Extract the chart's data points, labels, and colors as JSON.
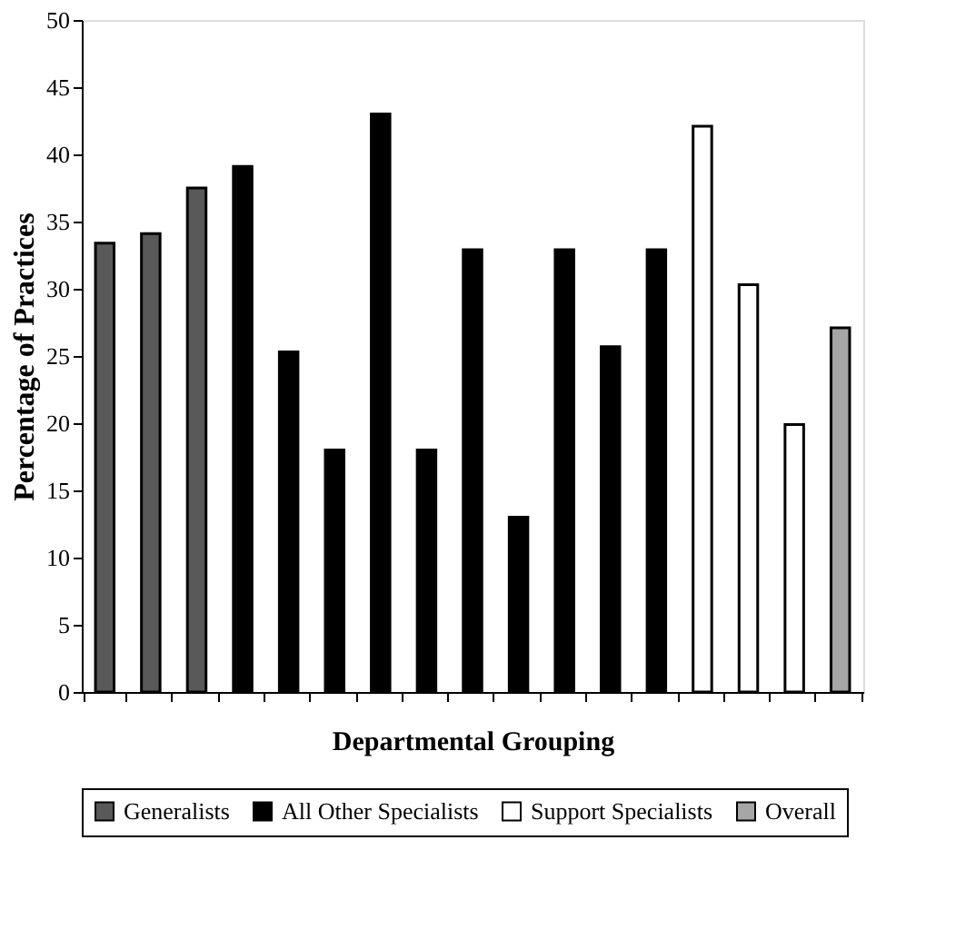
{
  "chart_data": {
    "type": "bar",
    "xlabel": "Departmental Grouping",
    "ylabel": "Percentage of Practices",
    "categories": [
      null,
      null,
      null,
      null,
      null,
      null,
      null,
      null,
      null,
      null,
      null,
      null,
      null,
      null,
      null,
      null,
      null
    ],
    "series": [
      {
        "name": "Generalists",
        "color": "#595959",
        "values": [
          33.4,
          34.1,
          37.5,
          null,
          null,
          null,
          null,
          null,
          null,
          null,
          null,
          null,
          null,
          null,
          null,
          null,
          null
        ]
      },
      {
        "name": "All Other Specialists",
        "color": "#000000",
        "values": [
          null,
          null,
          null,
          39.1,
          25.3,
          18.0,
          43.0,
          18.0,
          32.9,
          13.0,
          32.9,
          25.7,
          32.9,
          null,
          null,
          null,
          null
        ]
      },
      {
        "name": "Support Specialists",
        "color": "#ffffff",
        "values": [
          null,
          null,
          null,
          null,
          null,
          null,
          null,
          null,
          null,
          null,
          null,
          null,
          null,
          42.1,
          30.3,
          19.9,
          null
        ]
      },
      {
        "name": "Overall",
        "color": "#a6a6a6",
        "values": [
          null,
          null,
          null,
          null,
          null,
          null,
          null,
          null,
          null,
          null,
          null,
          null,
          null,
          null,
          null,
          null,
          27.1
        ]
      }
    ],
    "ylim": [
      0,
      50
    ],
    "yticks": [
      0,
      5,
      10,
      15,
      20,
      25,
      30,
      35,
      40,
      45,
      50
    ],
    "grid": false,
    "legend": "bottom",
    "tick_labels": "y"
  }
}
